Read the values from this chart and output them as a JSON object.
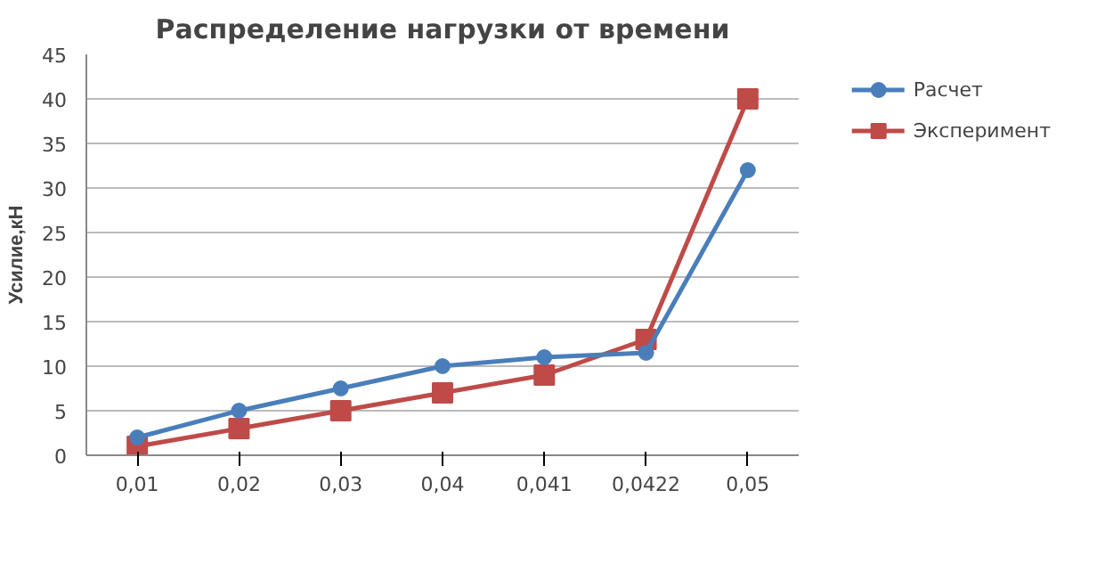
{
  "chart_data": {
    "type": "line",
    "title": "Распределение нагрузки от времени",
    "ylabel": "Усилие,кН",
    "categories": [
      "0,01",
      "0,02",
      "0,03",
      "0,04",
      "0,041",
      "0,0422",
      "0,05"
    ],
    "series": [
      {
        "name": "Расчет",
        "color": "#4a7ebb",
        "marker": "circle",
        "values": [
          2,
          5,
          7.5,
          10,
          11,
          11.5,
          32
        ]
      },
      {
        "name": "Эксперимент",
        "color": "#be4b48",
        "marker": "square",
        "values": [
          1,
          3,
          5,
          7,
          9,
          13,
          40
        ]
      }
    ],
    "ylim": [
      0,
      45
    ],
    "yticks": [
      0,
      5,
      10,
      15,
      20,
      25,
      30,
      35,
      40,
      45
    ],
    "grid": "y",
    "legend": "right",
    "line_style": "solid"
  }
}
